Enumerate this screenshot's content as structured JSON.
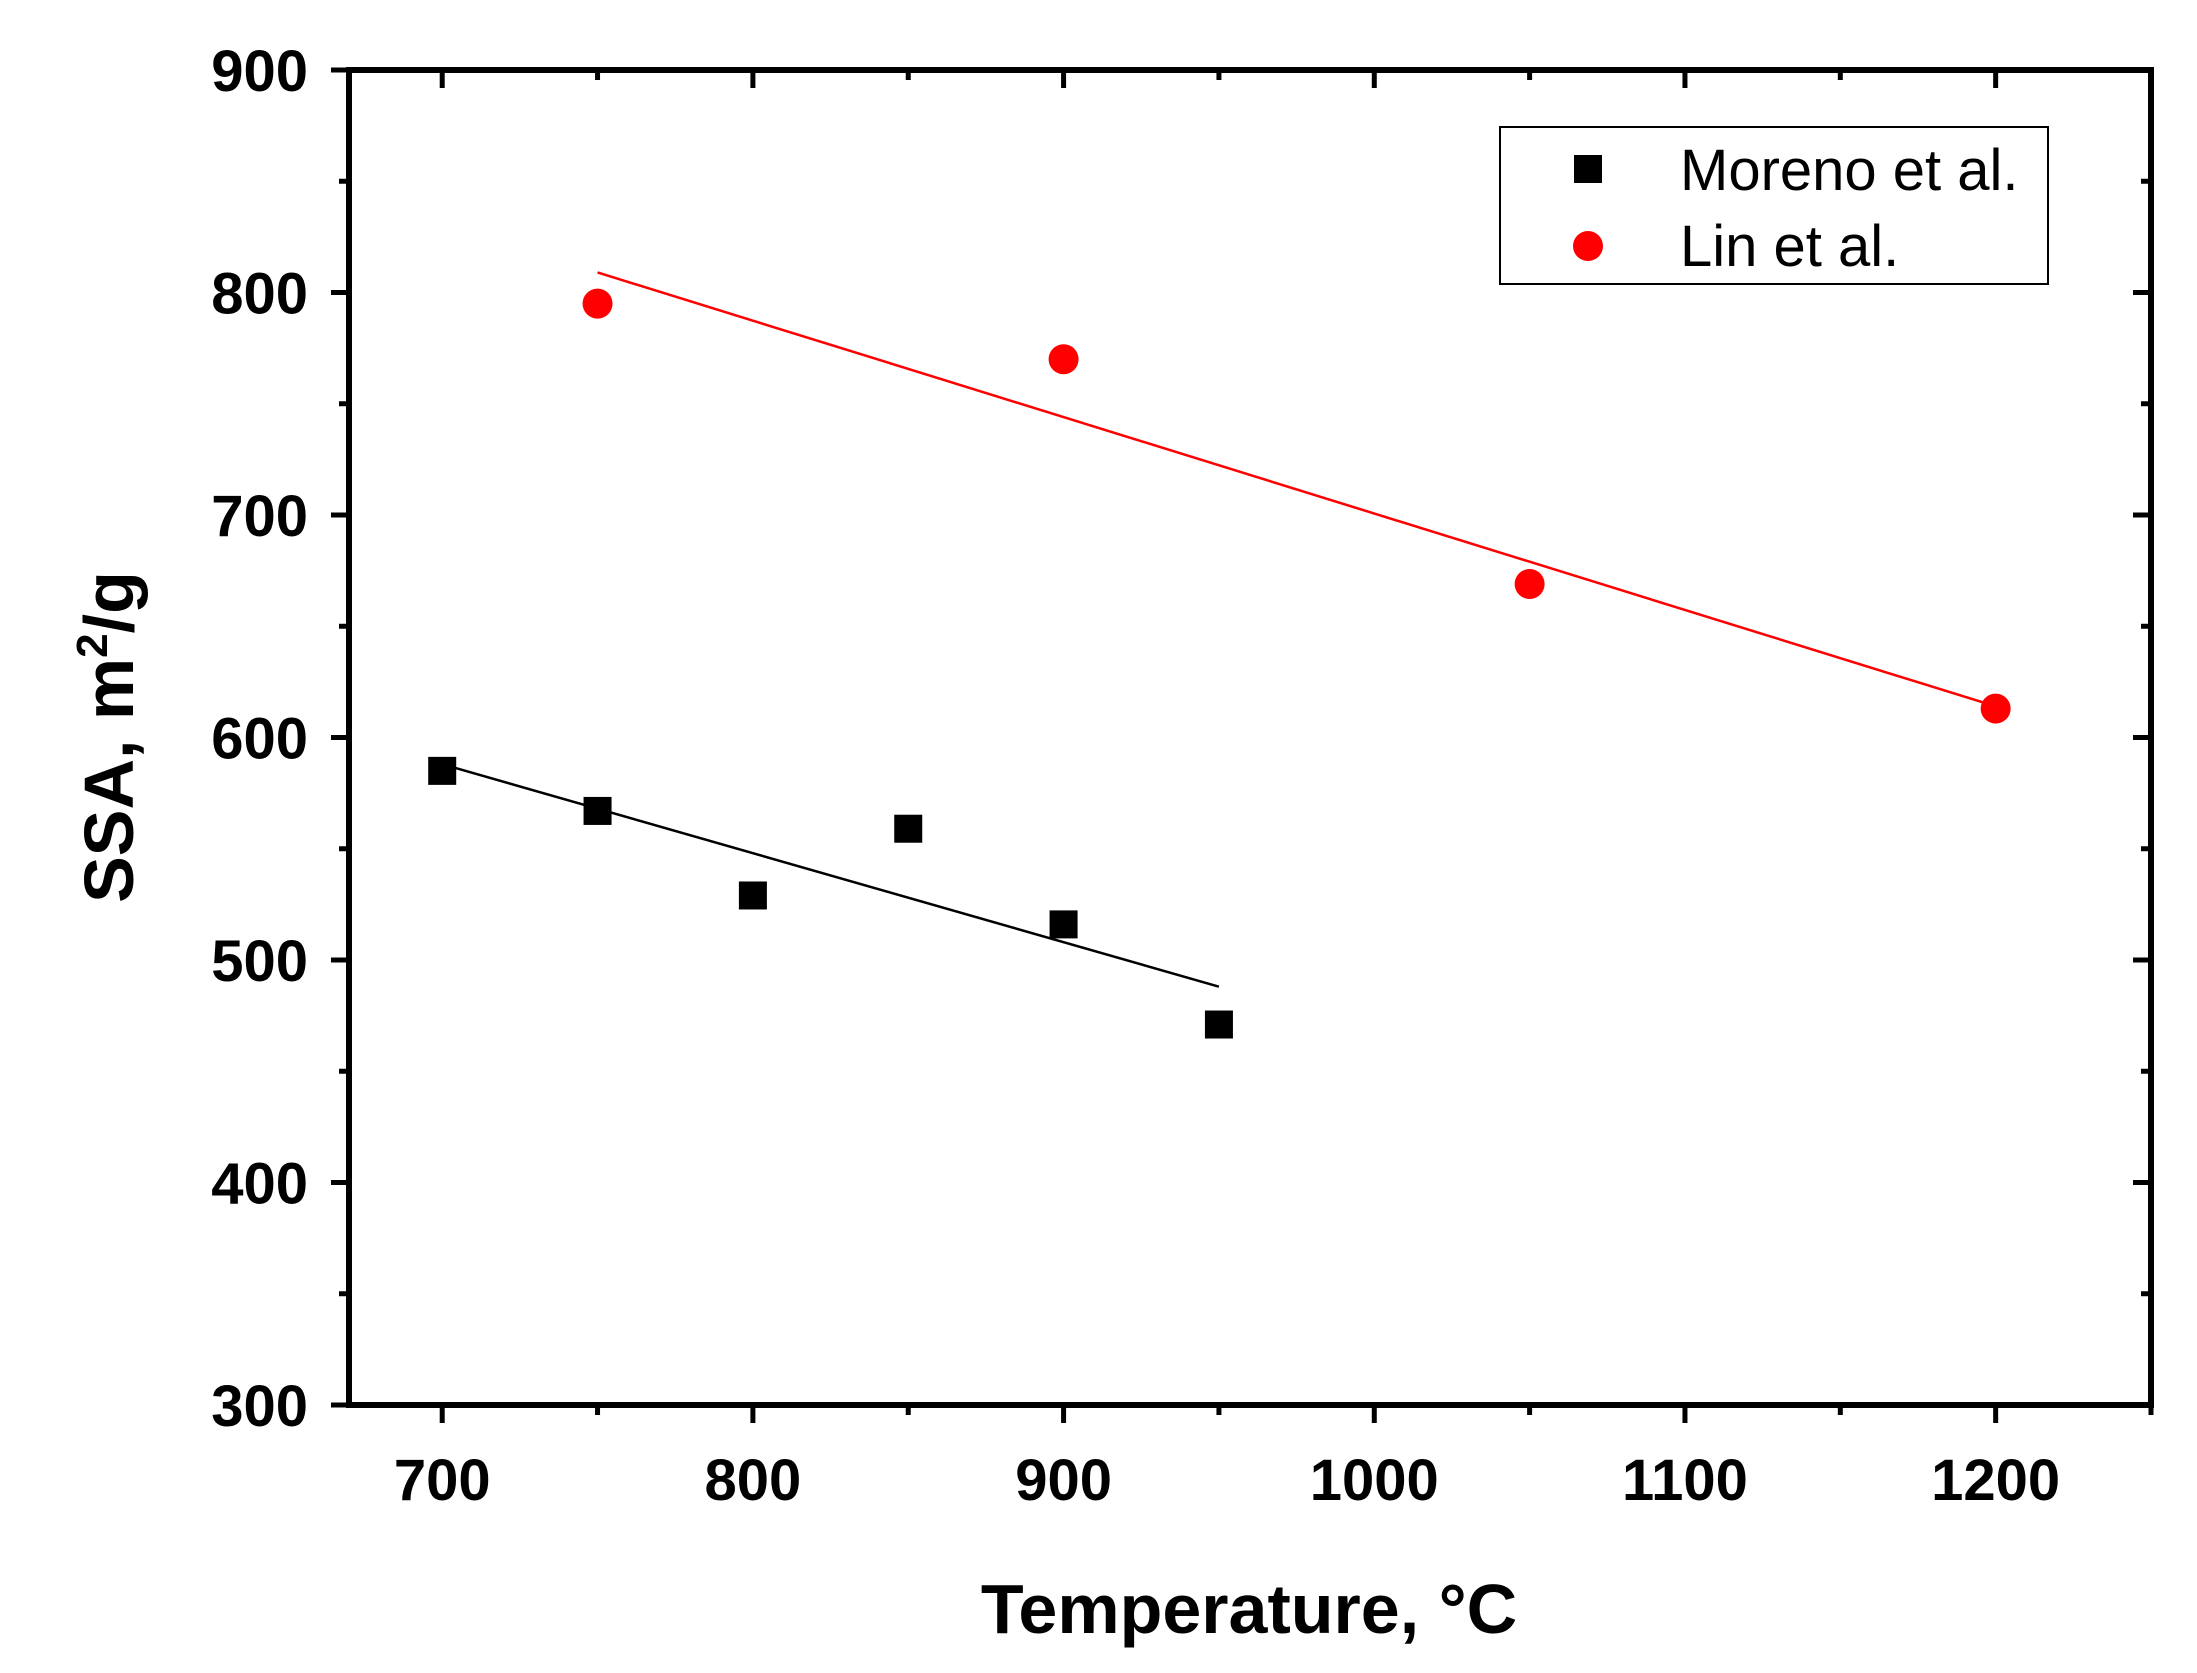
{
  "chart_data": {
    "type": "scatter",
    "xlabel": "Temperature, °C",
    "ylabel_main": "SSA, m",
    "ylabel_sup": "2",
    "ylabel_end": "/g",
    "xlim": [
      670,
      1250
    ],
    "ylim": [
      300,
      900
    ],
    "xticks": [
      700,
      800,
      900,
      1000,
      1100,
      1200
    ],
    "yticks": [
      300,
      400,
      500,
      600,
      700,
      800,
      900
    ],
    "x_minor_step": 50,
    "y_minor_step": 50,
    "legend_position": "top-right",
    "series": [
      {
        "name": "Moreno et al.",
        "marker": "square",
        "color": "#000000",
        "points": [
          {
            "x": 700,
            "y": 585
          },
          {
            "x": 750,
            "y": 567
          },
          {
            "x": 800,
            "y": 529
          },
          {
            "x": 850,
            "y": 559
          },
          {
            "x": 900,
            "y": 516
          },
          {
            "x": 950,
            "y": 471
          }
        ],
        "fit": {
          "x0": 700,
          "y0": 588,
          "x1": 950,
          "y1": 488
        }
      },
      {
        "name": "Lin et al.",
        "marker": "circle",
        "color": "#ff0000",
        "points": [
          {
            "x": 750,
            "y": 795
          },
          {
            "x": 900,
            "y": 770
          },
          {
            "x": 1050,
            "y": 669
          },
          {
            "x": 1200,
            "y": 613
          }
        ],
        "fit": {
          "x0": 750,
          "y0": 809,
          "x1": 1200,
          "y1": 614
        }
      }
    ]
  }
}
